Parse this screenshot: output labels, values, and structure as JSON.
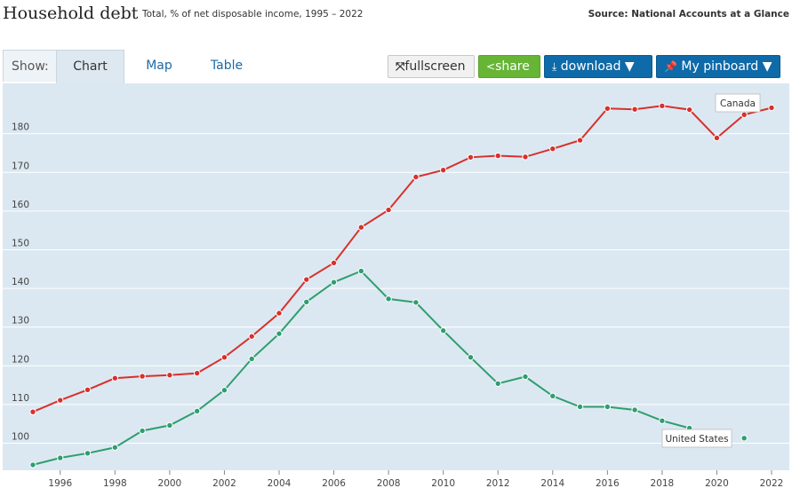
{
  "header": {
    "title": "Household debt",
    "subtitle": "Total, % of net disposable income, 1995 – 2022",
    "source": "Source: National Accounts at a Glance"
  },
  "toolbar": {
    "show_label": "Show:",
    "tabs": [
      {
        "label": "Chart",
        "active": true
      },
      {
        "label": "Map",
        "active": false
      },
      {
        "label": "Table",
        "active": false
      }
    ],
    "fullscreen_label": "fullscreen",
    "share_label": "share",
    "download_label": "download ▼",
    "pinboard_label": "My pinboard ▼"
  },
  "colors": {
    "canada": "#d9302c",
    "united_states": "#2e9e6e",
    "plot_bg": "#dbe8f1",
    "grid": "#ffffff"
  },
  "chart_data": {
    "type": "line",
    "title": "Household debt",
    "subtitle": "Total, % of net disposable income, 1995 – 2022",
    "xlim": [
      1995,
      2022
    ],
    "ylim": [
      93,
      193
    ],
    "y_ticks": [
      100,
      110,
      120,
      130,
      140,
      150,
      160,
      170,
      180
    ],
    "x_ticks": [
      1996,
      1998,
      2000,
      2002,
      2004,
      2006,
      2008,
      2010,
      2012,
      2014,
      2016,
      2018,
      2020,
      2022
    ],
    "grid": true,
    "series": [
      {
        "name": "Canada",
        "color": "#d9302c",
        "x": [
          1995,
          1996,
          1997,
          1998,
          1999,
          2000,
          2001,
          2002,
          2003,
          2004,
          2005,
          2006,
          2007,
          2008,
          2009,
          2010,
          2011,
          2012,
          2013,
          2014,
          2015,
          2016,
          2017,
          2018,
          2019,
          2020,
          2021,
          2022
        ],
        "values": [
          108.1,
          111.1,
          113.8,
          116.8,
          117.3,
          117.6,
          118.1,
          122.2,
          127.6,
          133.6,
          142.3,
          146.6,
          155.8,
          160.3,
          168.8,
          170.6,
          173.9,
          174.3,
          174.0,
          176.1,
          178.3,
          186.5,
          186.3,
          187.2,
          186.2,
          178.9,
          184.9,
          186.7
        ]
      },
      {
        "name": "United States",
        "color": "#2e9e6e",
        "x": [
          1995,
          1996,
          1997,
          1998,
          1999,
          2000,
          2001,
          2002,
          2003,
          2004,
          2005,
          2006,
          2007,
          2008,
          2009,
          2010,
          2011,
          2012,
          2013,
          2014,
          2015,
          2016,
          2017,
          2018,
          2019,
          2021
        ],
        "values": [
          94.4,
          96.2,
          97.4,
          98.9,
          103.2,
          104.6,
          108.3,
          113.7,
          121.8,
          128.3,
          136.5,
          141.6,
          144.5,
          137.3,
          136.4,
          129.1,
          122.2,
          115.4,
          117.2,
          112.2,
          109.4,
          109.4,
          108.6,
          105.8,
          103.9,
          101.3
        ]
      }
    ]
  }
}
